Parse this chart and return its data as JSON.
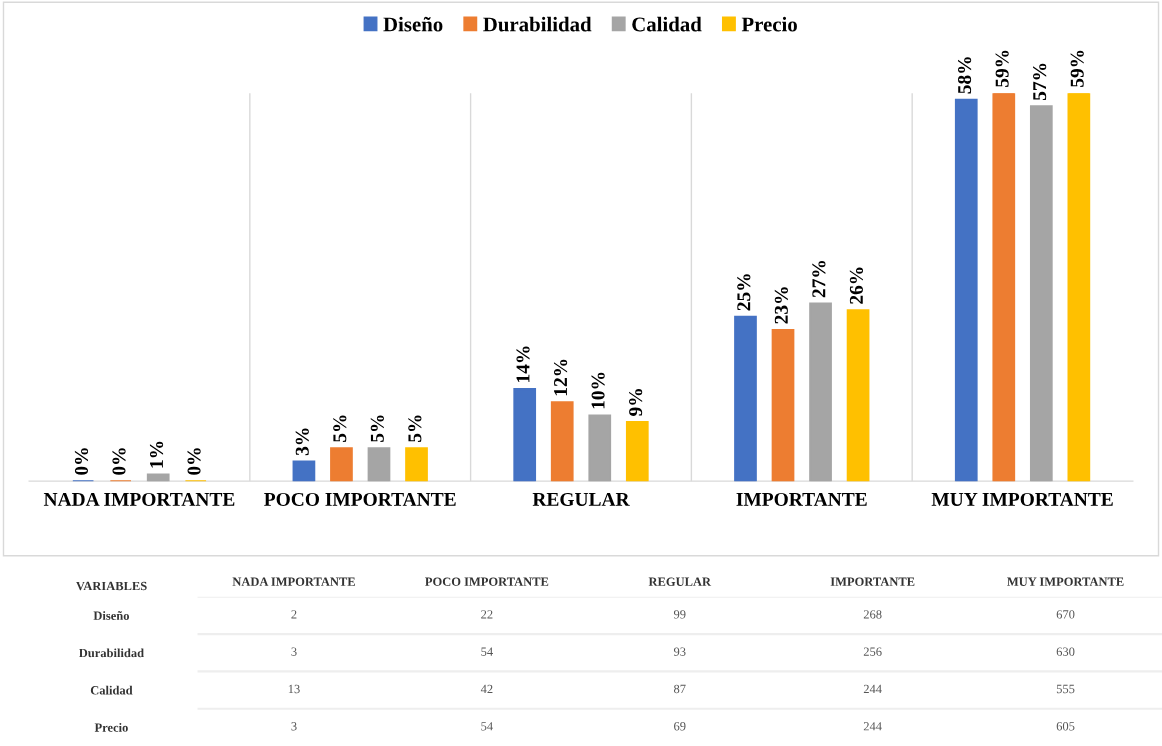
{
  "chart_data": [
    {
      "type": "bar",
      "categories": [
        "NADA IMPORTANTE",
        "POCO IMPORTANTE",
        "REGULAR",
        "IMPORTANTE",
        "MUY IMPORTANTE"
      ],
      "series": [
        {
          "name": "Diseño",
          "color": "#4472c4",
          "values": [
            0,
            3,
            14,
            25,
            58
          ],
          "value_labels": [
            "0%",
            "3%",
            "14%",
            "25%",
            "58%"
          ]
        },
        {
          "name": "Durabilidad",
          "color": "#ed7d31",
          "values": [
            0,
            5,
            12,
            23,
            59
          ],
          "value_labels": [
            "0%",
            "5%",
            "12%",
            "23%",
            "59%"
          ]
        },
        {
          "name": "Calidad",
          "color": "#a5a5a5",
          "values": [
            1,
            5,
            10,
            27,
            57
          ],
          "value_labels": [
            "1%",
            "5%",
            "10%",
            "27%",
            "57%"
          ]
        },
        {
          "name": "Precio",
          "color": "#ffc000",
          "values": [
            0,
            5,
            9,
            26,
            59
          ],
          "value_labels": [
            "0%",
            "5%",
            "9%",
            "26%",
            "59%"
          ]
        }
      ],
      "legend": "top",
      "grid": "x"
    },
    {
      "type": "heatmap",
      "data_labels": true,
      "ylabel": "VARIABLES",
      "categories": [
        "NADA IMPORTANTE",
        "POCO IMPORTANTE",
        "REGULAR",
        "IMPORTANTE",
        "MUY IMPORTANTE"
      ],
      "y_categories": [
        "Diseño",
        "Durabilidad",
        "Calidad",
        "Precio"
      ],
      "cells": [
        [
          2,
          22,
          99,
          268,
          670
        ],
        [
          3,
          54,
          93,
          256,
          630
        ],
        [
          13,
          42,
          87,
          244,
          555
        ],
        [
          3,
          54,
          69,
          244,
          605
        ]
      ]
    }
  ]
}
